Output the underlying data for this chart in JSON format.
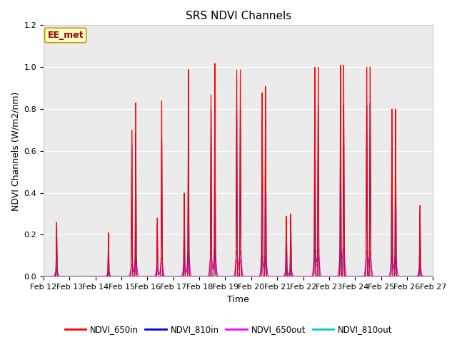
{
  "title": "SRS NDVI Channels",
  "xlabel": "Time",
  "ylabel": "NDVI Channels (W/m2/nm)",
  "annotation": "EE_met",
  "ylim": [
    0,
    1.2
  ],
  "xlim_days": [
    0,
    15
  ],
  "series": {
    "NDVI_650in": {
      "color": "#ff0000",
      "lw": 0.8
    },
    "NDVI_810in": {
      "color": "#0000dd",
      "lw": 0.8
    },
    "NDVI_650out": {
      "color": "#ff00ff",
      "lw": 0.8
    },
    "NDVI_810out": {
      "color": "#00cccc",
      "lw": 0.8
    }
  },
  "xtick_labels": [
    "Feb 12",
    "Feb 13",
    "Feb 14",
    "Feb 15",
    "Feb 16",
    "Feb 17",
    "Feb 18",
    "Feb 19",
    "Feb 20",
    "Feb 21",
    "Feb 22",
    "Feb 23",
    "Feb 24",
    "Feb 25",
    "Feb 26",
    "Feb 27"
  ],
  "bg_color": "#ebebeb",
  "grid_color": "#ffffff",
  "legend_colors": [
    "#ff0000",
    "#0000dd",
    "#ff00ff",
    "#00cccc"
  ],
  "legend_labels": [
    "NDVI_650in",
    "NDVI_810in",
    "NDVI_650out",
    "NDVI_810out"
  ],
  "figsize": [
    6.4,
    4.8
  ],
  "dpi": 100
}
